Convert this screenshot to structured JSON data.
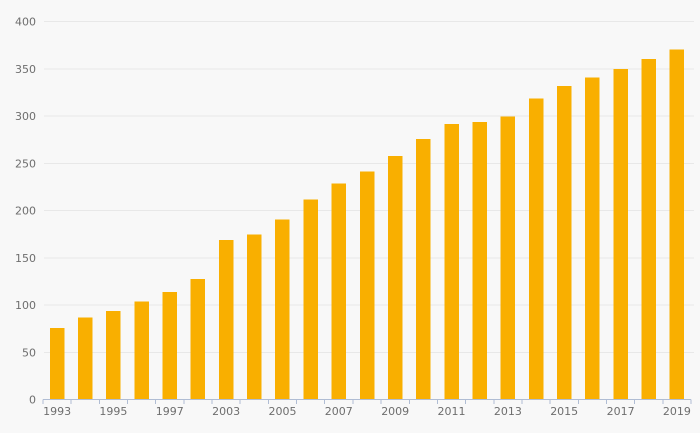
{
  "chart_data": {
    "type": "bar",
    "title": "",
    "xlabel": "",
    "ylabel": "",
    "values": [
      75,
      86,
      93,
      103,
      113,
      127,
      168,
      174,
      190,
      211,
      228,
      241,
      257,
      275,
      291,
      293,
      299,
      318,
      331,
      340,
      349,
      360,
      370
    ],
    "x_tick_labels": [
      "1993",
      "1995",
      "1997",
      "2003",
      "2005",
      "2007",
      "2009",
      "2011",
      "2013",
      "2015",
      "2017",
      "2019"
    ],
    "x_label_every": 2,
    "x_label_start_index": 0,
    "y_ticks": [
      0,
      50,
      100,
      150,
      200,
      250,
      300,
      350,
      400
    ],
    "ylim": [
      0,
      400
    ],
    "grid": true,
    "legend": "none",
    "colors": {
      "bar": "#F9AF00",
      "background": "#F8F8F8",
      "gridline": "#E8E8E8",
      "axis_line": "#B0BDD4",
      "tick_text": "#6E6E6E"
    }
  }
}
